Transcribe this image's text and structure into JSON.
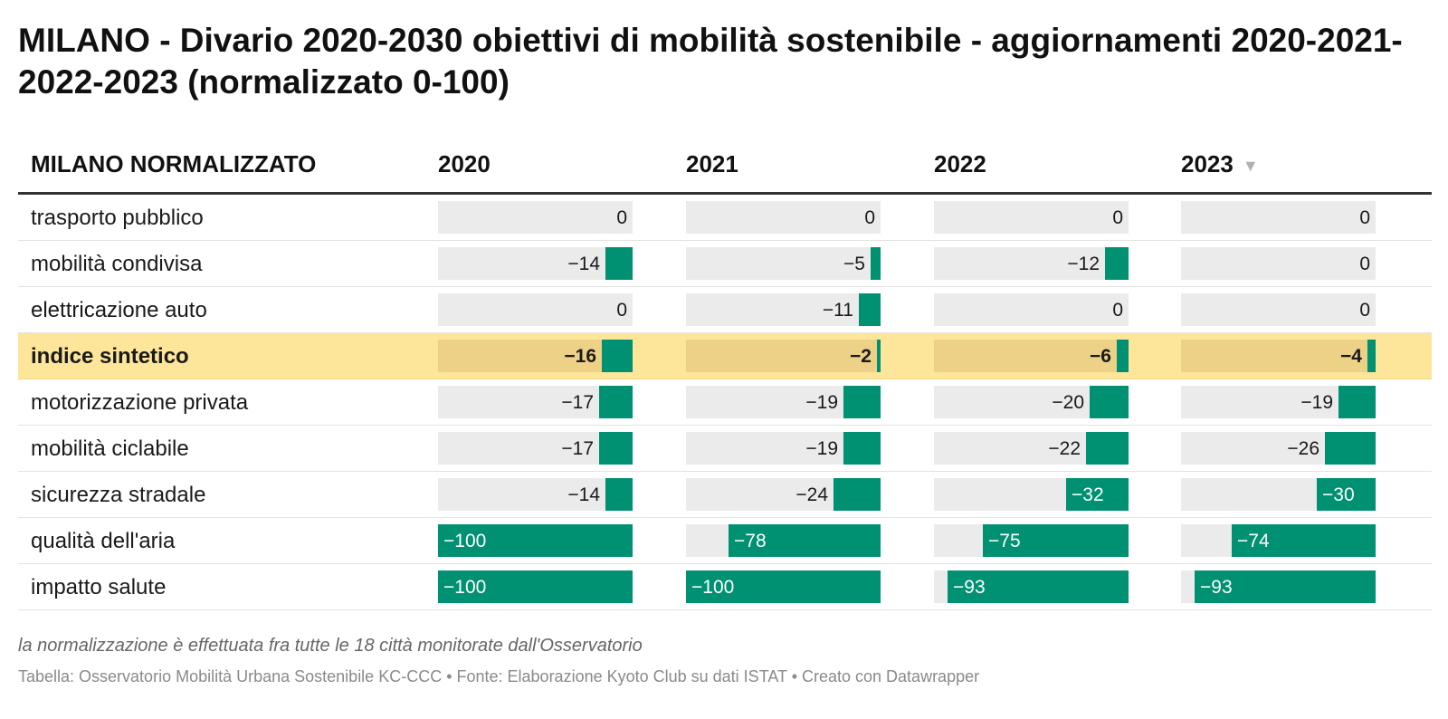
{
  "title": "MILANO - Divario 2020-2030 obiettivi di mobilità sostenibile - aggiornamenti 2020-2021-2022-2023 (normalizzato 0-100)",
  "header": {
    "label_column": "MILANO NORMALIZZATO",
    "sort_indicator": "▼"
  },
  "chart_data": {
    "type": "table",
    "columns": [
      "2020",
      "2021",
      "2022",
      "2023"
    ],
    "sorted_column": "2023",
    "value_range": [
      -100,
      0
    ],
    "bar_color": "#009072",
    "highlight_color": "#fde59a",
    "rows": [
      {
        "label": "trasporto pubblico",
        "values": [
          0,
          0,
          0,
          0
        ],
        "display": [
          "0",
          "0",
          "0",
          "0"
        ]
      },
      {
        "label": "mobilità condivisa",
        "values": [
          -14,
          -5,
          -12,
          0
        ],
        "display": [
          "−14",
          "−5",
          "−12",
          "0"
        ]
      },
      {
        "label": "elettricazione auto",
        "values": [
          0,
          -11,
          0,
          0
        ],
        "display": [
          "0",
          "−11",
          "0",
          "0"
        ]
      },
      {
        "label": "indice sintetico",
        "values": [
          -16,
          -2,
          -6,
          -4
        ],
        "display": [
          "−16",
          "−2",
          "−6",
          "−4"
        ],
        "highlight": true
      },
      {
        "label": "motorizzazione privata",
        "values": [
          -17,
          -19,
          -20,
          -19
        ],
        "display": [
          "−17",
          "−19",
          "−20",
          "−19"
        ]
      },
      {
        "label": "mobilità ciclabile",
        "values": [
          -17,
          -19,
          -22,
          -26
        ],
        "display": [
          "−17",
          "−19",
          "−22",
          "−26"
        ]
      },
      {
        "label": "sicurezza stradale",
        "values": [
          -14,
          -24,
          -32,
          -30
        ],
        "display": [
          "−14",
          "−24",
          "−32",
          "−30"
        ]
      },
      {
        "label": "qualità dell'aria",
        "values": [
          -100,
          -78,
          -75,
          -74
        ],
        "display": [
          "−100",
          "−78",
          "−75",
          "−74"
        ]
      },
      {
        "label": "impatto salute",
        "values": [
          -100,
          -100,
          -93,
          -93
        ],
        "display": [
          "−100",
          "−100",
          "−93",
          "−93"
        ]
      }
    ]
  },
  "footer": {
    "note": "la normalizzazione è effettuata fra tutte le 18 città monitorate dall'Osservatorio",
    "source": "Tabella: Osservatorio Mobilità Urbana Sostenibile KC-CCC • Fonte: Elaborazione Kyoto Club su dati ISTAT • Creato con Datawrapper"
  }
}
